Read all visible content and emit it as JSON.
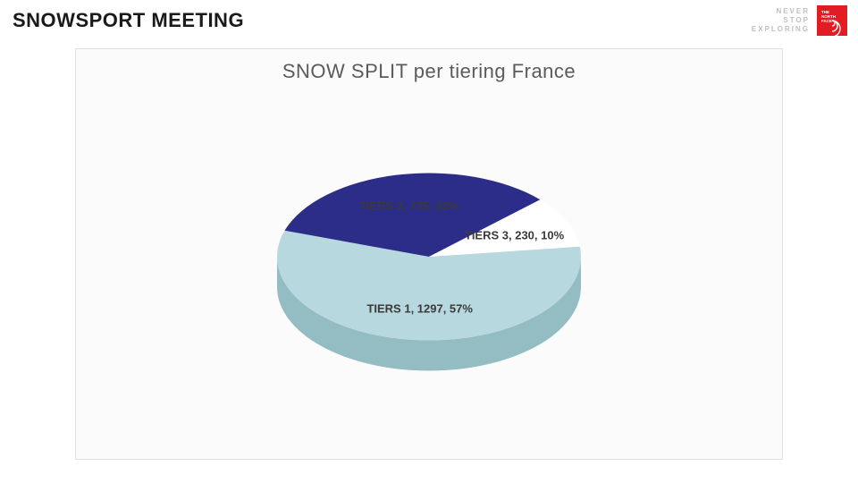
{
  "header": {
    "title": "SNOWSPORT MEETING",
    "slogan_line1": "NEVER",
    "slogan_line2": "STOP",
    "slogan_line3": "EXPLORING",
    "logo_bg": "#e31b23",
    "logo_text1": "THE",
    "logo_text2": "NORTH",
    "logo_text3": "FACE"
  },
  "panel": {
    "background": "#fbfbfb",
    "border_color": "#e0e0e0"
  },
  "chart": {
    "type": "pie",
    "title": "SNOW SPLIT per tiering France",
    "title_fontsize": 22,
    "title_color": "#5b5b5b",
    "label_fontsize": 13,
    "label_color": "#3a3a3a",
    "radius": 170,
    "depth": 34,
    "tilt": 0.55,
    "start_angle_deg": -7,
    "slices": [
      {
        "name": "TIERS 1",
        "value": 1297,
        "percent": 57,
        "color": "#b6d8de",
        "side_color": "#94bcc3",
        "label": "TIERS 1, 1297, 57%"
      },
      {
        "name": "TIERS 2",
        "value": 735,
        "percent": 33,
        "color": "#2c2d88",
        "side_color": "#1e1f63",
        "label": "TIERS 2, 735, 33%"
      },
      {
        "name": "TIERS 3",
        "value": 230,
        "percent": 10,
        "color": "#ffffff",
        "side_color": "#d9d9d9",
        "label": "TIERS 3, 230, 10%"
      }
    ]
  }
}
